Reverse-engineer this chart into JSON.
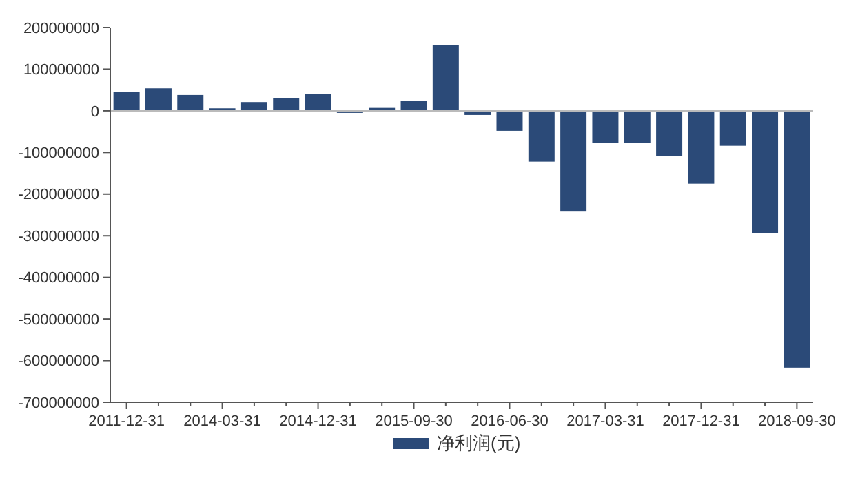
{
  "chart_data": {
    "type": "bar",
    "categories": [
      "2011-12-31",
      null,
      null,
      "2014-03-31",
      null,
      null,
      "2014-12-31",
      null,
      null,
      "2015-09-30",
      null,
      null,
      "2016-06-30",
      null,
      null,
      "2017-03-31",
      null,
      null,
      "2017-12-31",
      null,
      null,
      "2018-09-30"
    ],
    "series": [
      {
        "name": "净利润(元)",
        "color": "#2b4a78",
        "values": [
          46000000,
          54000000,
          38000000,
          6000000,
          21000000,
          30000000,
          40000000,
          -5000000,
          7000000,
          24000000,
          157000000,
          -10000000,
          -48000000,
          -122000000,
          -242000000,
          -77000000,
          -77000000,
          -108000000,
          -175000000,
          -84000000,
          -294000000,
          -617000000
        ]
      }
    ],
    "ylim": [
      -700000000,
      200000000
    ],
    "yticks": [
      -700000000,
      -600000000,
      -500000000,
      -400000000,
      -300000000,
      -200000000,
      -100000000,
      0,
      100000000,
      200000000
    ],
    "legend": "bottom"
  }
}
